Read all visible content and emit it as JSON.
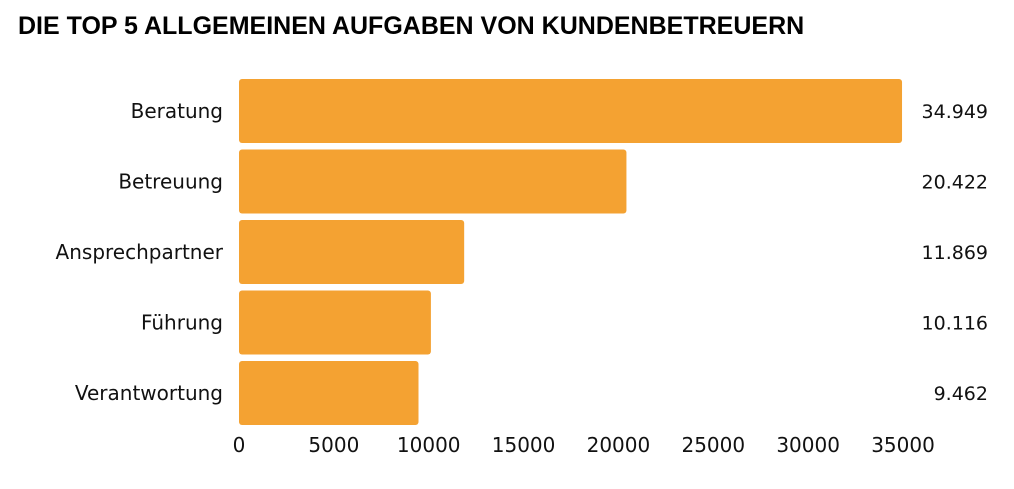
{
  "chart_data": {
    "type": "bar",
    "orientation": "horizontal",
    "title": "DIE TOP 5 ALLGEMEINEN AUFGABEN VON KUNDENBETREUERN",
    "categories": [
      "Beratung",
      "Betreuung",
      "Ansprechpartner",
      "Führung",
      "Verantwortung"
    ],
    "values": [
      34949,
      20422,
      11869,
      10116,
      9462
    ],
    "value_labels": [
      "34.949",
      "20.422",
      "11.869",
      "10.116",
      "9.462"
    ],
    "xlim": [
      0,
      35000
    ],
    "x_ticks": [
      "0",
      "5000",
      "10000",
      "15000",
      "20000",
      "25000",
      "30000",
      "35000"
    ],
    "grid": false,
    "bar_color": "#F4A232"
  }
}
